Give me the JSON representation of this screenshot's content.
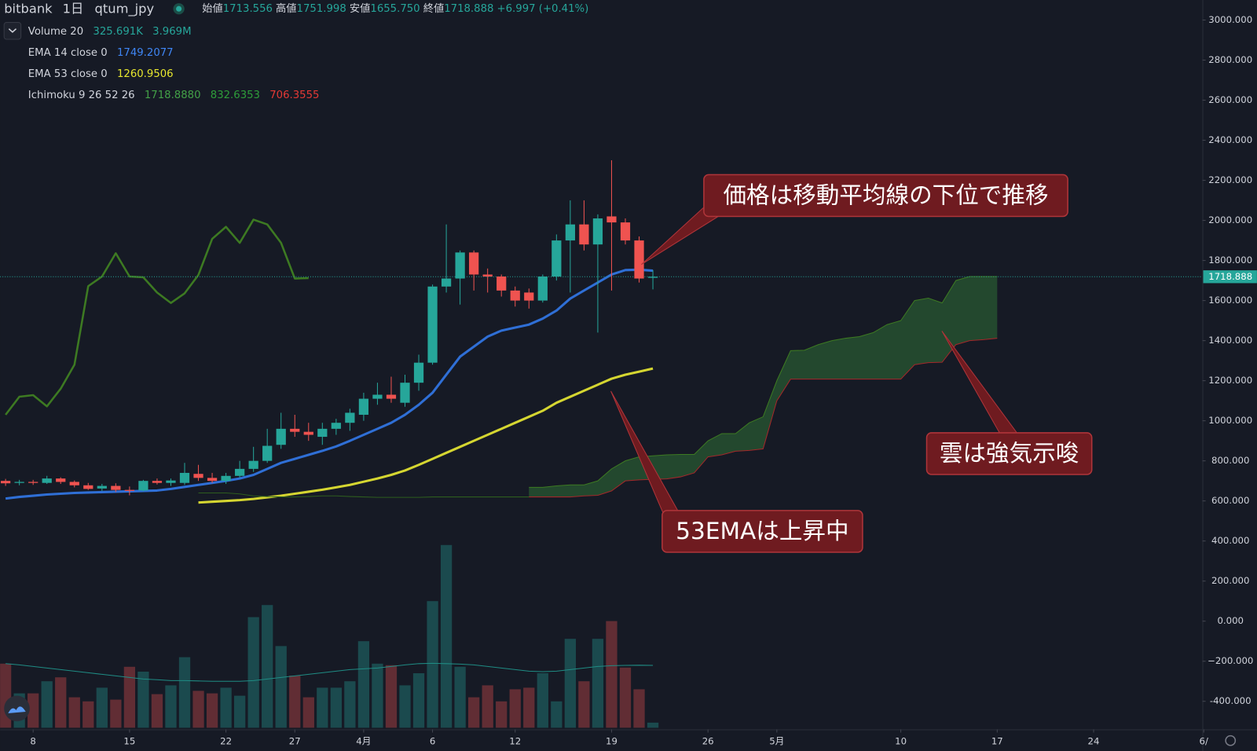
{
  "chart_data": {
    "type": "candlestick",
    "exchange": "bitbank",
    "interval": "1日",
    "symbol": "qtum_jpy",
    "ohlc": [
      {
        "label": "始値",
        "reading": 1713.556
      },
      {
        "label": "高値",
        "reading": 1751.998
      },
      {
        "label": "安値",
        "reading": {
          "value": 1655.75,
          "label": "1655.750"
        }
      },
      {
        "label": "終値",
        "reading": 1718.888
      }
    ],
    "change": "+6.997 (+0.41%)",
    "indicators": [
      {
        "name": "Volume 20",
        "readings": [
          {
            "text": "325.691K",
            "color": "#26a69a"
          },
          {
            "text": "3.969M",
            "color": "#26a69a"
          }
        ]
      },
      {
        "name": "EMA 14 close 0",
        "readings": [
          {
            "text": "1749.2077",
            "color": "#3f86f5"
          }
        ]
      },
      {
        "name": "EMA 53 close 0",
        "readings": [
          {
            "text": "1260.9506",
            "color": "#e6e62e"
          }
        ]
      },
      {
        "name": "Ichimoku 9 26 52 26",
        "readings": [
          {
            "text": "1718.8880",
            "color": "#43a047"
          },
          {
            "text": "832.6353",
            "color": "#2e9d3a"
          },
          {
            "text": "706.3555",
            "color": "#e53935"
          }
        ]
      }
    ],
    "up_color": "#26a69a",
    "down_color": "#ef5350",
    "x": [
      -2,
      -1,
      0,
      1,
      2,
      3,
      4,
      5,
      6,
      7,
      8,
      9,
      10,
      11,
      12,
      13,
      14,
      15,
      16,
      17,
      18,
      19,
      20,
      21,
      22,
      23,
      24,
      25,
      26,
      27,
      28,
      29,
      30,
      31,
      32,
      33,
      34,
      35,
      36,
      37,
      38,
      39,
      40,
      41,
      42,
      43,
      44,
      45
    ],
    "open": [
      700,
      690,
      695,
      690,
      712,
      695,
      678,
      662,
      675,
      655,
      652,
      700,
      690,
      690,
      735,
      715,
      700,
      725,
      760,
      800,
      880,
      960,
      945,
      920,
      960,
      990,
      1030,
      1110,
      1130,
      1090,
      1190,
      1290,
      1670,
      1710,
      1840,
      1730,
      1720,
      1650,
      1640,
      1600,
      1720,
      1900,
      1980,
      1880,
      2020,
      1990,
      1900,
      1713.556
    ],
    "high": [
      710,
      705,
      705,
      725,
      718,
      702,
      690,
      685,
      688,
      672,
      705,
      712,
      712,
      790,
      780,
      740,
      740,
      800,
      870,
      960,
      1040,
      1030,
      990,
      990,
      1010,
      1060,
      1140,
      1190,
      1220,
      1230,
      1330,
      1680,
      1980,
      1850,
      1850,
      1760,
      1730,
      1670,
      1660,
      1730,
      1930,
      2100,
      2100,
      2030,
      2300,
      2010,
      1920,
      1751.998
    ],
    "low": [
      675,
      678,
      680,
      685,
      685,
      668,
      655,
      650,
      645,
      628,
      648,
      682,
      675,
      680,
      700,
      690,
      685,
      715,
      745,
      790,
      860,
      920,
      900,
      880,
      930,
      950,
      1000,
      1080,
      1090,
      1070,
      1150,
      1280,
      1640,
      1580,
      1650,
      1640,
      1620,
      1570,
      1560,
      1590,
      1700,
      1640,
      1850,
      1440,
      1650,
      1880,
      1690,
      1655.75
    ],
    "close": [
      688,
      695,
      690,
      712,
      695,
      678,
      660,
      675,
      655,
      650,
      700,
      690,
      702,
      740,
      715,
      700,
      725,
      760,
      800,
      875,
      960,
      945,
      930,
      960,
      990,
      1040,
      1110,
      1130,
      1110,
      1190,
      1290,
      1670,
      1710,
      1840,
      1730,
      1720,
      1650,
      1600,
      1600,
      1720,
      1900,
      1980,
      1880,
      2010,
      1990,
      1900,
      1710,
      1718.888
    ],
    "volume": {
      "up_color": "rgba(38,166,154,0.35)",
      "down_color": "rgba(239,83,80,0.35)",
      "ma_color": "#1f8c84",
      "values": [
        4.08,
        2.19,
        2.19,
        2.96,
        3.21,
        1.94,
        1.68,
        2.55,
        1.79,
        3.88,
        3.57,
        2.14,
        2.7,
        4.49,
        2.35,
        2.19,
        2.55,
        2.04,
        7.04,
        7.81,
        5.2,
        3.32,
        1.94,
        2.55,
        2.55,
        2.96,
        5.51,
        4.08,
        3.98,
        2.7,
        3.47,
        8.06,
        11.63,
        3.88,
        1.94,
        2.7,
        1.68,
        2.45,
        2.55,
        3.47,
        1.68,
        5.66,
        2.96,
        5.66,
        6.79,
        3.83,
        2.45,
        0.325691
      ],
      "ma": [
        4.08,
        4.0,
        3.9,
        3.8,
        3.7,
        3.6,
        3.5,
        3.4,
        3.3,
        3.2,
        3.1,
        3.06,
        3.0,
        3.0,
        2.98,
        2.96,
        2.96,
        2.96,
        3.0,
        3.1,
        3.2,
        3.3,
        3.4,
        3.5,
        3.6,
        3.7,
        3.75,
        3.8,
        3.9,
        4.0,
        4.08,
        4.1,
        4.08,
        4.05,
        4.0,
        3.9,
        3.8,
        3.7,
        3.6,
        3.57,
        3.6,
        3.7,
        3.8,
        3.9,
        3.95,
        3.97,
        3.98,
        3.969
      ]
    },
    "overlays": [
      {
        "color": "#2f6fd6",
        "width": 3,
        "x": [
          -2,
          -1,
          0,
          1,
          2,
          3,
          4,
          5,
          6,
          7,
          8,
          9,
          10,
          11,
          12,
          13,
          14,
          15,
          16,
          17,
          18,
          19,
          20,
          21,
          22,
          23,
          24,
          25,
          26,
          27,
          28,
          29,
          30,
          31,
          32,
          33,
          34,
          35,
          36,
          37,
          38,
          39,
          40,
          41,
          42,
          43,
          44,
          45
        ],
        "values": [
          612,
          620,
          626,
          632,
          636,
          640,
          642,
          644,
          646,
          648,
          650,
          652,
          660,
          670,
          680,
          690,
          700,
          712,
          730,
          760,
          790,
          810,
          830,
          850,
          872,
          900,
          930,
          960,
          990,
          1030,
          1080,
          1140,
          1230,
          1320,
          1370,
          1420,
          1450,
          1465,
          1480,
          1510,
          1550,
          1610,
          1650,
          1690,
          1730,
          1752,
          1754,
          1749.2077
        ]
      },
      {
        "color": "#d5d631",
        "width": 3,
        "x": [
          12,
          13,
          14,
          15,
          16,
          17,
          18,
          19,
          20,
          21,
          22,
          23,
          24,
          25,
          26,
          27,
          28,
          29,
          30,
          31,
          32,
          33,
          34,
          35,
          36,
          37,
          38,
          39,
          40,
          41,
          42,
          43,
          44,
          45
        ],
        "values": [
          592,
          596,
          600,
          604,
          610,
          618,
          626,
          636,
          646,
          656,
          668,
          680,
          696,
          712,
          730,
          752,
          780,
          810,
          840,
          870,
          900,
          930,
          960,
          990,
          1020,
          1050,
          1090,
          1120,
          1150,
          1180,
          1210,
          1230,
          1245,
          1260.9506
        ]
      },
      {
        "color": "#3d7a22",
        "width": 2.5,
        "x": [
          -2,
          -1,
          0,
          1,
          2,
          3,
          4,
          5,
          6,
          7,
          8,
          9,
          10,
          11,
          12,
          13,
          14,
          15,
          16,
          17,
          18,
          19,
          20
        ],
        "values": [
          1030,
          1120,
          1128,
          1072,
          1160,
          1280,
          1672,
          1720,
          1836,
          1720,
          1716,
          1640,
          1588,
          1636,
          1728,
          1908,
          1968,
          1888,
          2004,
          1980,
          1888,
          1710,
          1712
        ]
      },
      {
        "color": "#2e5d1f",
        "width": 1,
        "x": [
          12,
          13,
          14,
          15,
          16,
          17,
          18,
          19,
          20,
          21,
          22,
          23,
          24,
          25,
          26,
          27,
          28,
          29,
          30,
          31,
          32,
          33,
          34,
          35,
          36
        ],
        "values": [
          640,
          640,
          640,
          635,
          625,
          622,
          620,
          620,
          622,
          625,
          625,
          622,
          620,
          618,
          618,
          618,
          618,
          620,
          620,
          620,
          620,
          620,
          620,
          620,
          620
        ]
      }
    ],
    "cloud": {
      "fill": "rgba(56,142,60,0.4)",
      "span_a_color": "#3d7a22",
      "span_b_color": "#a3282a",
      "x": [
        36,
        37,
        38,
        39,
        40,
        41,
        42,
        43,
        44,
        45,
        46,
        47,
        48,
        49,
        50,
        51,
        52,
        53,
        54,
        55,
        56,
        57,
        58,
        59,
        60,
        61,
        62,
        63,
        64,
        65,
        66,
        67,
        68,
        69,
        70
      ],
      "span_a": [
        668,
        668,
        675,
        680,
        680,
        700,
        760,
        800,
        820,
        825,
        830,
        832,
        832,
        900,
        936,
        936,
        990,
        1020,
        1200,
        1350,
        1352,
        1380,
        1400,
        1412,
        1420,
        1440,
        1480,
        1500,
        1600,
        1612,
        1588,
        1700,
        1720,
        1720,
        1720
      ],
      "span_b": [
        620,
        620,
        620,
        620,
        625,
        628,
        650,
        700,
        705,
        708,
        710,
        720,
        740,
        820,
        830,
        848,
        852,
        860,
        1100,
        1208,
        1208,
        1208,
        1208,
        1208,
        1208,
        1208,
        1208,
        1208,
        1280,
        1290,
        1292,
        1380,
        1400,
        1405,
        1412
      ]
    },
    "last_price": 1718.888,
    "xlim": [
      -2.4,
      84.9
    ],
    "ylim": [
      -540,
      3100
    ],
    "xticks": [
      {
        "value": 0,
        "label": "8"
      },
      {
        "value": 7,
        "label": "15"
      },
      {
        "value": 14,
        "label": "22"
      },
      {
        "value": 19,
        "label": "27"
      },
      {
        "value": 24,
        "label": "4月"
      },
      {
        "value": 29,
        "label": "6"
      },
      {
        "value": 35,
        "label": "12"
      },
      {
        "value": 42,
        "label": "19"
      },
      {
        "value": 49,
        "label": "26"
      },
      {
        "value": 54,
        "label": "5月"
      },
      {
        "value": 63,
        "label": "10"
      },
      {
        "value": 70,
        "label": "17"
      },
      {
        "value": 77,
        "label": "24"
      },
      {
        "value": 85,
        "label": "6/"
      }
    ],
    "yticks": [
      {
        "value": -400,
        "label": "-400.000"
      },
      {
        "value": -200,
        "label": "−200.000"
      },
      {
        "value": 0,
        "label": "0.000"
      },
      {
        "value": 200,
        "label": "200.000"
      },
      {
        "value": 400,
        "label": "400.000"
      },
      {
        "value": 600,
        "label": "600.000"
      },
      {
        "value": 800,
        "label": "800.000"
      },
      {
        "value": 1000,
        "label": "1000.000"
      },
      {
        "value": 1200,
        "label": "1200.000"
      },
      {
        "value": 1400,
        "label": "1400.000"
      },
      {
        "value": 1600,
        "label": "1600.000"
      },
      {
        "value": 1800,
        "label": "1800.000"
      },
      {
        "value": 2000,
        "label": "2000.000"
      },
      {
        "value": 2200,
        "label": "2200.000"
      },
      {
        "value": 2400,
        "label": "2400.000"
      },
      {
        "value": 2600,
        "label": "2600.000"
      },
      {
        "value": 2800,
        "label": "2800.000"
      },
      {
        "value": 3000,
        "label": "3000.000"
      }
    ],
    "annotations": [
      {
        "text": "価格は移動平均線の下位で推移"
      },
      {
        "text": "雲は強気示唆"
      },
      {
        "text": "53EMAは上昇中"
      }
    ]
  }
}
